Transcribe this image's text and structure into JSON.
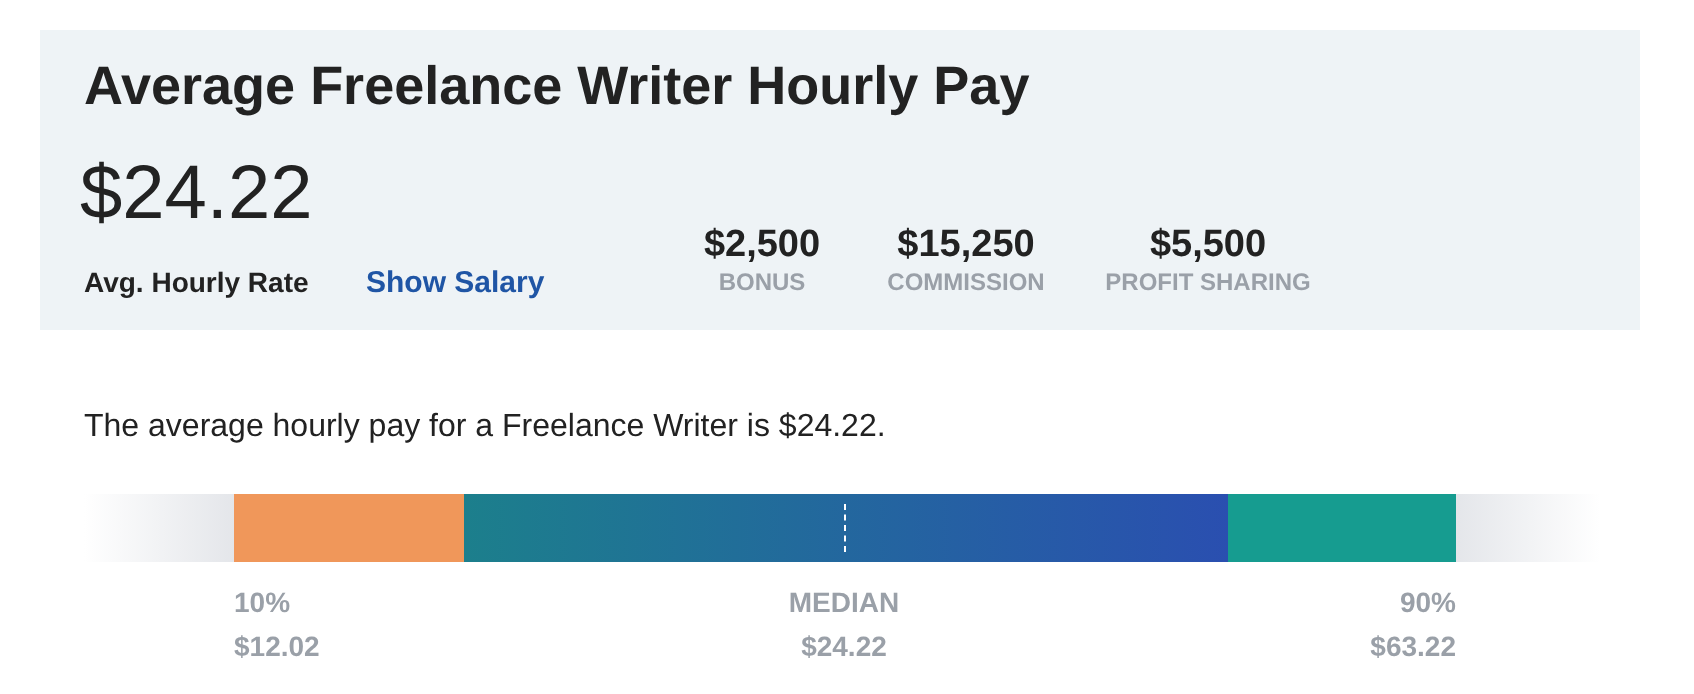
{
  "chart_data": {
    "type": "other",
    "title": "Average Freelance Writer Hourly Pay",
    "subtitle": "The average hourly pay for a Freelance Writer is $24.22.",
    "annotations": [
      "$24.22",
      "Avg. Hourly Rate",
      "Show Salary",
      "$2,500",
      "BONUS",
      "$15,250",
      "COMMISSION",
      "$5,500",
      "PROFIT SHARING"
    ],
    "categories": [
      "10%",
      "MEDIAN",
      "90%"
    ],
    "values": [
      12.02,
      24.22,
      63.22
    ],
    "value_labels": [
      "$12.02",
      "$24.22",
      "$63.22"
    ]
  }
}
